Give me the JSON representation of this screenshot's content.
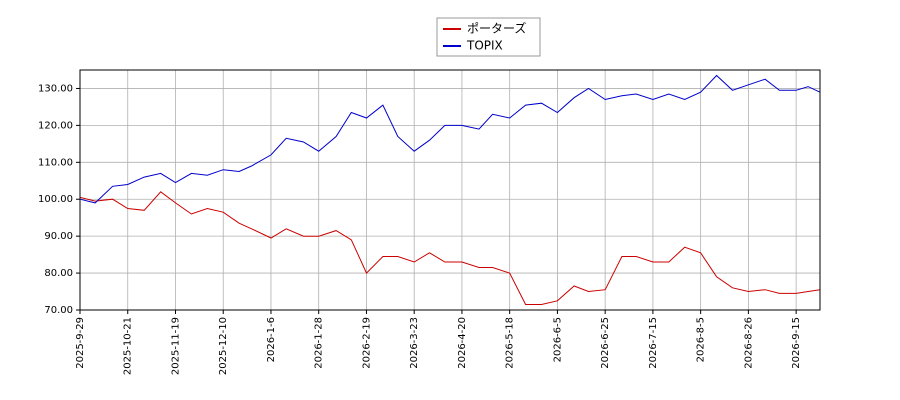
{
  "chart_data": {
    "type": "line",
    "x": [
      "2025-9-29",
      "2025-10-6",
      "2025-10-14",
      "2025-10-21",
      "2025-10-31",
      "2025-11-10",
      "2025-11-19",
      "2025-11-26",
      "2025-12-3",
      "2025-12-10",
      "2025-12-19",
      "2025-12-26",
      "2026-1-6",
      "2026-1-13",
      "2026-1-21",
      "2026-1-28",
      "2026-2-5",
      "2026-2-12",
      "2026-2-19",
      "2026-3-2",
      "2026-3-12",
      "2026-3-23",
      "2026-4-1",
      "2026-4-10",
      "2026-4-20",
      "2026-4-30",
      "2026-5-8",
      "2026-5-18",
      "2026-5-24",
      "2026-5-30",
      "2026-6-5",
      "2026-6-12",
      "2026-6-18",
      "2026-6-25",
      "2026-7-2",
      "2026-7-8",
      "2026-7-15",
      "2026-7-22",
      "2026-7-29",
      "2026-8-5",
      "2026-8-12",
      "2026-8-19",
      "2026-8-26",
      "2026-9-2",
      "2026-9-8",
      "2026-9-15",
      "2026-9-20",
      "2026-9-25"
    ],
    "series": [
      {
        "name": "ポーターズ",
        "color": "#cc0000",
        "values": [
          100.5,
          99.5,
          100,
          97.5,
          97,
          102,
          99,
          96,
          97.5,
          96.5,
          93.5,
          92,
          89.5,
          92,
          90,
          90,
          91.5,
          89,
          80,
          84.5,
          84.5,
          83,
          85.5,
          83,
          83,
          81.5,
          81.5,
          80,
          71.5,
          71.5,
          72.5,
          76.5,
          75,
          75.5,
          84.5,
          84.5,
          83,
          83,
          87,
          85.5,
          79,
          76,
          75,
          75.5,
          74.5,
          74.5,
          75,
          75.5
        ]
      },
      {
        "name": "TOPIX",
        "color": "#0000cc",
        "values": [
          100,
          99,
          103.5,
          104,
          106,
          107,
          104.5,
          107,
          106.5,
          108,
          107.5,
          109,
          112,
          116.5,
          115.5,
          113,
          117,
          123.5,
          122,
          125.5,
          117,
          113,
          116,
          120,
          120,
          119,
          123,
          122,
          125.5,
          126,
          123.5,
          127.5,
          130,
          127,
          128,
          128.5,
          127,
          128.5,
          127,
          129,
          133.5,
          129.5,
          131,
          132.5,
          129.5,
          129.5,
          130.5,
          129
        ]
      }
    ],
    "xlim": [
      "2025-9-29",
      "2026-9-25"
    ],
    "xticks": [
      "2025-9-29",
      "2025-10-21",
      "2025-11-19",
      "2025-12-10",
      "2026-1-6",
      "2026-1-28",
      "2026-2-19",
      "2026-3-23",
      "2026-4-20",
      "2026-5-18",
      "2026-6-5",
      "2026-6-25",
      "2026-7-15",
      "2026-8-5",
      "2026-8-26",
      "2026-9-15"
    ],
    "ylim": [
      70,
      135
    ],
    "yticks": [
      {
        "value": 70,
        "label": "70.00"
      },
      {
        "value": 80,
        "label": "80.00"
      },
      {
        "value": 90,
        "label": "90.00"
      },
      {
        "value": 100,
        "label": "100.00"
      },
      {
        "value": 110,
        "label": "110.00"
      },
      {
        "value": 120,
        "label": "120.00"
      },
      {
        "value": 130,
        "label": "130.00"
      }
    ],
    "grid": true,
    "legend": "top"
  }
}
